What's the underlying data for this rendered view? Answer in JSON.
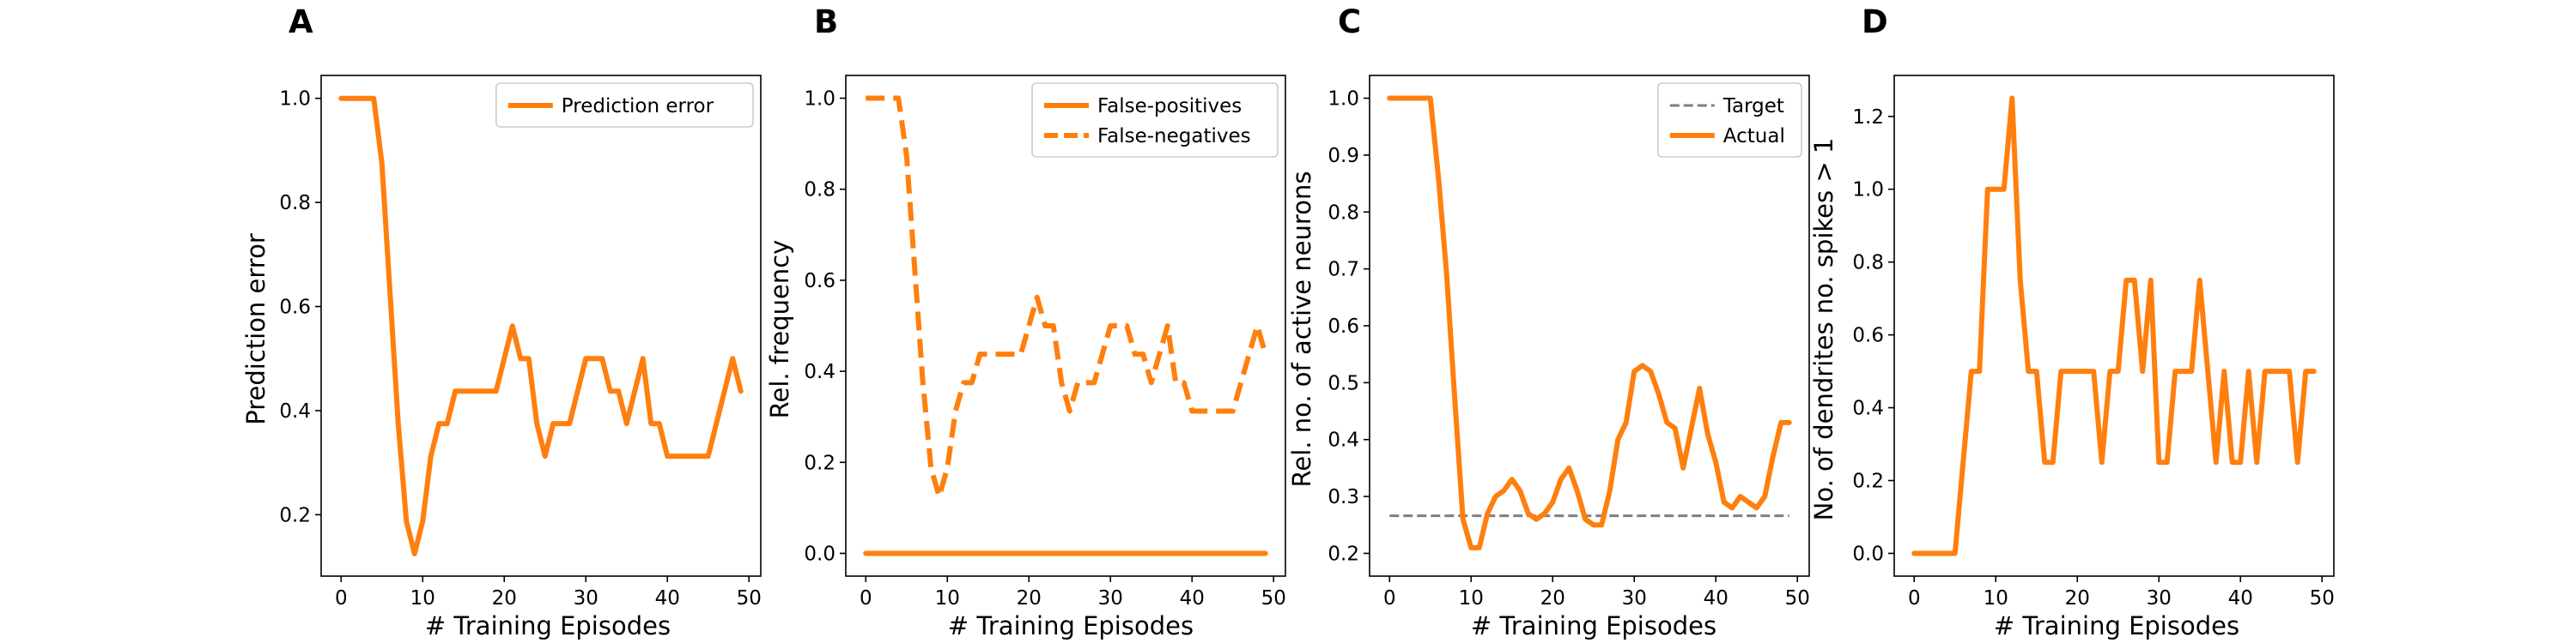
{
  "colors": {
    "accent": "#ff7f0e",
    "target": "#7f7f7f",
    "axes": "#000000",
    "legend_frame": "#cccccc"
  },
  "panels": [
    {
      "letter": "A",
      "xlabel": "# Training Episodes",
      "ylabel": "Prediction error"
    },
    {
      "letter": "B",
      "xlabel": "# Training Episodes",
      "ylabel": "Rel. frequency"
    },
    {
      "letter": "C",
      "xlabel": "# Training Episodes",
      "ylabel": "Rel. no. of active neurons"
    },
    {
      "letter": "D",
      "xlabel": "# Training Episodes",
      "ylabel": "No. of dendrites no. spikes > 1"
    }
  ],
  "chart_data": [
    {
      "type": "line",
      "panel": "A",
      "title": "",
      "xlabel": "# Training Episodes",
      "ylabel": "Prediction error",
      "xlim": [
        -2.45,
        51.45
      ],
      "ylim": [
        0.082,
        1.044
      ],
      "xticks": [
        0,
        10,
        20,
        30,
        40,
        50
      ],
      "yticks": [
        0.2,
        0.4,
        0.6,
        0.8,
        1.0
      ],
      "yticklabels": [
        "0.2",
        "0.4",
        "0.6",
        "0.8",
        "1.0"
      ],
      "legend": "upper right",
      "series": [
        {
          "name": "Prediction error",
          "style": "solid",
          "x": [
            0,
            1,
            2,
            3,
            4,
            5,
            6,
            7,
            8,
            9,
            10,
            11,
            12,
            13,
            14,
            15,
            16,
            17,
            18,
            19,
            20,
            21,
            22,
            23,
            24,
            25,
            26,
            27,
            28,
            29,
            30,
            31,
            32,
            33,
            34,
            35,
            36,
            37,
            38,
            39,
            40,
            41,
            42,
            43,
            44,
            45,
            46,
            47,
            48,
            49
          ],
          "y": [
            1.0,
            1.0,
            1.0,
            1.0,
            1.0,
            0.875,
            0.625,
            0.375,
            0.1875,
            0.125,
            0.1875,
            0.3125,
            0.375,
            0.375,
            0.4375,
            0.4375,
            0.4375,
            0.4375,
            0.4375,
            0.4375,
            0.5,
            0.5625,
            0.5,
            0.5,
            0.375,
            0.3125,
            0.375,
            0.375,
            0.375,
            0.4375,
            0.5,
            0.5,
            0.5,
            0.4375,
            0.4375,
            0.375,
            0.4375,
            0.5,
            0.375,
            0.375,
            0.3125,
            0.3125,
            0.3125,
            0.3125,
            0.3125,
            0.3125,
            0.375,
            0.4375,
            0.5,
            0.4375
          ]
        }
      ]
    },
    {
      "type": "line",
      "panel": "B",
      "title": "",
      "xlabel": "# Training Episodes",
      "ylabel": "Rel. frequency",
      "xlim": [
        -2.45,
        51.45
      ],
      "ylim": [
        -0.05,
        1.05
      ],
      "xticks": [
        0,
        10,
        20,
        30,
        40,
        50
      ],
      "yticks": [
        0.0,
        0.2,
        0.4,
        0.6,
        0.8,
        1.0
      ],
      "yticklabels": [
        "0.0",
        "0.2",
        "0.4",
        "0.6",
        "0.8",
        "1.0"
      ],
      "legend": "upper right",
      "series": [
        {
          "name": "False-positives",
          "style": "solid",
          "x": [
            0,
            1,
            2,
            3,
            4,
            5,
            6,
            7,
            8,
            9,
            10,
            11,
            12,
            13,
            14,
            15,
            16,
            17,
            18,
            19,
            20,
            21,
            22,
            23,
            24,
            25,
            26,
            27,
            28,
            29,
            30,
            31,
            32,
            33,
            34,
            35,
            36,
            37,
            38,
            39,
            40,
            41,
            42,
            43,
            44,
            45,
            46,
            47,
            48,
            49
          ],
          "y": [
            0,
            0,
            0,
            0,
            0,
            0,
            0,
            0,
            0,
            0,
            0,
            0,
            0,
            0,
            0,
            0,
            0,
            0,
            0,
            0,
            0,
            0,
            0,
            0,
            0,
            0,
            0,
            0,
            0,
            0,
            0,
            0,
            0,
            0,
            0,
            0,
            0,
            0,
            0,
            0,
            0,
            0,
            0,
            0,
            0,
            0,
            0,
            0,
            0,
            0
          ]
        },
        {
          "name": "False-negatives",
          "style": "dashed",
          "x": [
            0,
            1,
            2,
            3,
            4,
            5,
            6,
            7,
            8,
            9,
            10,
            11,
            12,
            13,
            14,
            15,
            16,
            17,
            18,
            19,
            20,
            21,
            22,
            23,
            24,
            25,
            26,
            27,
            28,
            29,
            30,
            31,
            32,
            33,
            34,
            35,
            36,
            37,
            38,
            39,
            40,
            41,
            42,
            43,
            44,
            45,
            46,
            47,
            48,
            49
          ],
          "y": [
            1.0,
            1.0,
            1.0,
            1.0,
            1.0,
            0.875,
            0.625,
            0.375,
            0.1875,
            0.125,
            0.1875,
            0.3125,
            0.375,
            0.375,
            0.4375,
            0.4375,
            0.4375,
            0.4375,
            0.4375,
            0.4375,
            0.5,
            0.5625,
            0.5,
            0.5,
            0.375,
            0.3125,
            0.375,
            0.375,
            0.375,
            0.4375,
            0.5,
            0.5,
            0.5,
            0.4375,
            0.4375,
            0.375,
            0.4375,
            0.5,
            0.375,
            0.375,
            0.3125,
            0.3125,
            0.3125,
            0.3125,
            0.3125,
            0.3125,
            0.375,
            0.4375,
            0.5,
            0.4375
          ]
        }
      ]
    },
    {
      "type": "line",
      "panel": "C",
      "title": "",
      "xlabel": "# Training Episodes",
      "ylabel": "Rel. no. of active neurons",
      "xlim": [
        -2.45,
        51.45
      ],
      "ylim": [
        0.16,
        1.04
      ],
      "xticks": [
        0,
        10,
        20,
        30,
        40,
        50
      ],
      "yticks": [
        0.2,
        0.3,
        0.4,
        0.5,
        0.6,
        0.7,
        0.8,
        0.9,
        1.0
      ],
      "yticklabels": [
        "0.2",
        "0.3",
        "0.4",
        "0.5",
        "0.6",
        "0.7",
        "0.8",
        "0.9",
        "1.0"
      ],
      "legend": "upper right",
      "series": [
        {
          "name": "Target",
          "style": "dashed",
          "color": "#7f7f7f",
          "x": [
            0,
            49
          ],
          "y": [
            0.266,
            0.266
          ]
        },
        {
          "name": "Actual",
          "style": "solid",
          "x": [
            0,
            1,
            2,
            3,
            4,
            5,
            6,
            7,
            8,
            9,
            10,
            11,
            12,
            13,
            14,
            15,
            16,
            17,
            18,
            19,
            20,
            21,
            22,
            23,
            24,
            25,
            26,
            27,
            28,
            29,
            30,
            31,
            32,
            33,
            34,
            35,
            36,
            37,
            38,
            39,
            40,
            41,
            42,
            43,
            44,
            45,
            46,
            47,
            48,
            49
          ],
          "y": [
            1.0,
            1.0,
            1.0,
            1.0,
            1.0,
            1.0,
            0.86,
            0.69,
            0.47,
            0.26,
            0.21,
            0.21,
            0.27,
            0.3,
            0.31,
            0.33,
            0.31,
            0.27,
            0.26,
            0.27,
            0.29,
            0.33,
            0.35,
            0.31,
            0.26,
            0.25,
            0.25,
            0.31,
            0.4,
            0.43,
            0.52,
            0.53,
            0.52,
            0.48,
            0.43,
            0.42,
            0.35,
            0.42,
            0.49,
            0.41,
            0.36,
            0.29,
            0.28,
            0.3,
            0.29,
            0.28,
            0.3,
            0.37,
            0.43,
            0.43
          ]
        }
      ]
    },
    {
      "type": "line",
      "panel": "D",
      "title": "",
      "xlabel": "# Training Episodes",
      "ylabel": "No. of dendrites no. spikes > 1",
      "xlim": [
        -2.45,
        51.45
      ],
      "ylim": [
        -0.0625,
        1.3125
      ],
      "xticks": [
        0,
        10,
        20,
        30,
        40,
        50
      ],
      "yticks": [
        0.0,
        0.2,
        0.4,
        0.6,
        0.8,
        1.0,
        1.2
      ],
      "yticklabels": [
        "0.0",
        "0.2",
        "0.4",
        "0.6",
        "0.8",
        "1.0",
        "1.2"
      ],
      "legend": "none",
      "series": [
        {
          "style": "solid",
          "x": [
            0,
            1,
            2,
            3,
            4,
            5,
            6,
            7,
            8,
            9,
            10,
            11,
            12,
            13,
            14,
            15,
            16,
            17,
            18,
            19,
            20,
            21,
            22,
            23,
            24,
            25,
            26,
            27,
            28,
            29,
            30,
            31,
            32,
            33,
            34,
            35,
            36,
            37,
            38,
            39,
            40,
            41,
            42,
            43,
            44,
            45,
            46,
            47,
            48,
            49
          ],
          "y": [
            0,
            0,
            0,
            0,
            0,
            0,
            0.25,
            0.5,
            0.5,
            1.0,
            1.0,
            1.0,
            1.25,
            0.75,
            0.5,
            0.5,
            0.25,
            0.25,
            0.5,
            0.5,
            0.5,
            0.5,
            0.5,
            0.25,
            0.5,
            0.5,
            0.75,
            0.75,
            0.5,
            0.75,
            0.25,
            0.25,
            0.5,
            0.5,
            0.5,
            0.75,
            0.5,
            0.25,
            0.5,
            0.25,
            0.25,
            0.5,
            0.25,
            0.5,
            0.5,
            0.5,
            0.5,
            0.25,
            0.5,
            0.5
          ]
        }
      ]
    }
  ]
}
